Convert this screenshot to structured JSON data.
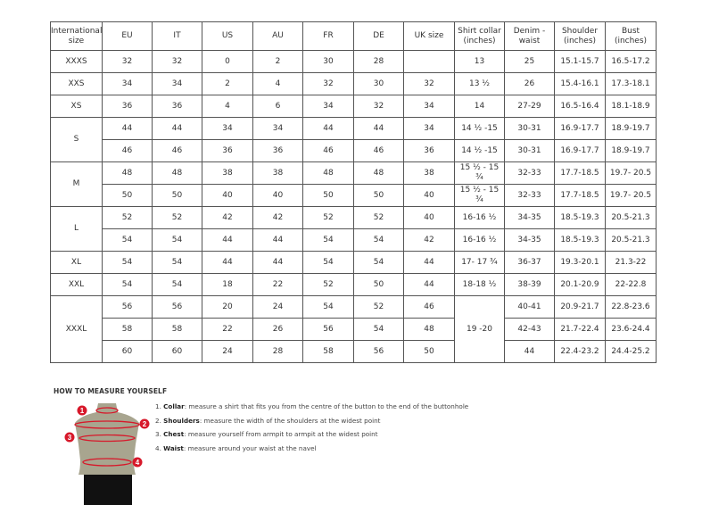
{
  "table": {
    "headers": [
      "International size",
      "EU",
      "IT",
      "US",
      "AU",
      "FR",
      "DE",
      "UK size",
      "Shirt collar (inches)",
      "Denim - waist",
      "Shoulder (inches)",
      "Bust (inches)"
    ],
    "groups": [
      {
        "size": "XXXS",
        "rows": [
          [
            "32",
            "32",
            "0",
            "2",
            "30",
            "28",
            "",
            "13",
            "25",
            "15.1-15.7",
            "16.5-17.2"
          ]
        ]
      },
      {
        "size": "XXS",
        "rows": [
          [
            "34",
            "34",
            "2",
            "4",
            "32",
            "30",
            "32",
            "13 ½",
            "26",
            "15.4-16.1",
            "17.3-18.1"
          ]
        ]
      },
      {
        "size": "XS",
        "rows": [
          [
            "36",
            "36",
            "4",
            "6",
            "34",
            "32",
            "34",
            "14",
            "27-29",
            "16.5-16.4",
            "18.1-18.9"
          ]
        ]
      },
      {
        "size": "S",
        "rows": [
          [
            "44",
            "44",
            "34",
            "34",
            "44",
            "44",
            "34",
            "14 ½ -15",
            "30-31",
            "16.9-17.7",
            "18.9-19.7"
          ],
          [
            "46",
            "46",
            "36",
            "36",
            "46",
            "46",
            "36",
            "14 ½ -15",
            "30-31",
            "16.9-17.7",
            "18.9-19.7"
          ]
        ]
      },
      {
        "size": "M",
        "rows": [
          [
            "48",
            "48",
            "38",
            "38",
            "48",
            "48",
            "38",
            "15 ½ - 15 ¾",
            "32-33",
            "17.7-18.5",
            "19.7- 20.5"
          ],
          [
            "50",
            "50",
            "40",
            "40",
            "50",
            "50",
            "40",
            "15 ½ - 15 ¾",
            "32-33",
            "17.7-18.5",
            "19.7- 20.5"
          ]
        ]
      },
      {
        "size": "L",
        "rows": [
          [
            "52",
            "52",
            "42",
            "42",
            "52",
            "52",
            "40",
            "16-16 ½",
            "34-35",
            "18.5-19.3",
            "20.5-21.3"
          ],
          [
            "54",
            "54",
            "44",
            "44",
            "54",
            "54",
            "42",
            "16-16 ½",
            "34-35",
            "18.5-19.3",
            "20.5-21.3"
          ]
        ]
      },
      {
        "size": "XL",
        "rows": [
          [
            "54",
            "54",
            "44",
            "44",
            "54",
            "54",
            "44",
            "17- 17 ¾",
            "36-37",
            "19.3-20.1",
            "21.3-22"
          ]
        ]
      },
      {
        "size": "XXL",
        "rows": [
          [
            "54",
            "54",
            "18",
            "22",
            "52",
            "50",
            "44",
            "18-18 ½",
            "38-39",
            "20.1-20.9",
            "22-22.8"
          ]
        ]
      },
      {
        "size": "XXXL",
        "collar": "19 -20",
        "rows": [
          [
            "56",
            "56",
            "20",
            "24",
            "54",
            "52",
            "46",
            "",
            "40-41",
            "20.9-21.7",
            "22.8-23.6"
          ],
          [
            "58",
            "58",
            "22",
            "26",
            "56",
            "54",
            "48",
            "",
            "42-43",
            "21.7-22.4",
            "23.6-24.4"
          ],
          [
            "60",
            "60",
            "24",
            "28",
            "58",
            "56",
            "50",
            "",
            "44",
            "22.4-23.2",
            "24.4-25.2"
          ]
        ]
      }
    ]
  },
  "guide": {
    "title": "HOW TO MEASURE YOURSELF",
    "markers": [
      "1",
      "2",
      "3",
      "4"
    ],
    "steps": [
      {
        "num": "1.",
        "term": "Collar",
        "text": ": measure a shirt that fits you from the centre of the button to the end of the buttonhole"
      },
      {
        "num": "2.",
        "term": "Shoulders",
        "text": ": measure the width of the shoulders at the widest point"
      },
      {
        "num": "3.",
        "term": "Chest",
        "text": ": measure yourself from armpit to armpit at the widest point"
      },
      {
        "num": "4.",
        "term": "Waist",
        "text": ": measure around your waist at the navel"
      }
    ]
  },
  "colors": {
    "marker": "#d7182a",
    "body": "#a8a58f",
    "shorts": "#111111"
  }
}
